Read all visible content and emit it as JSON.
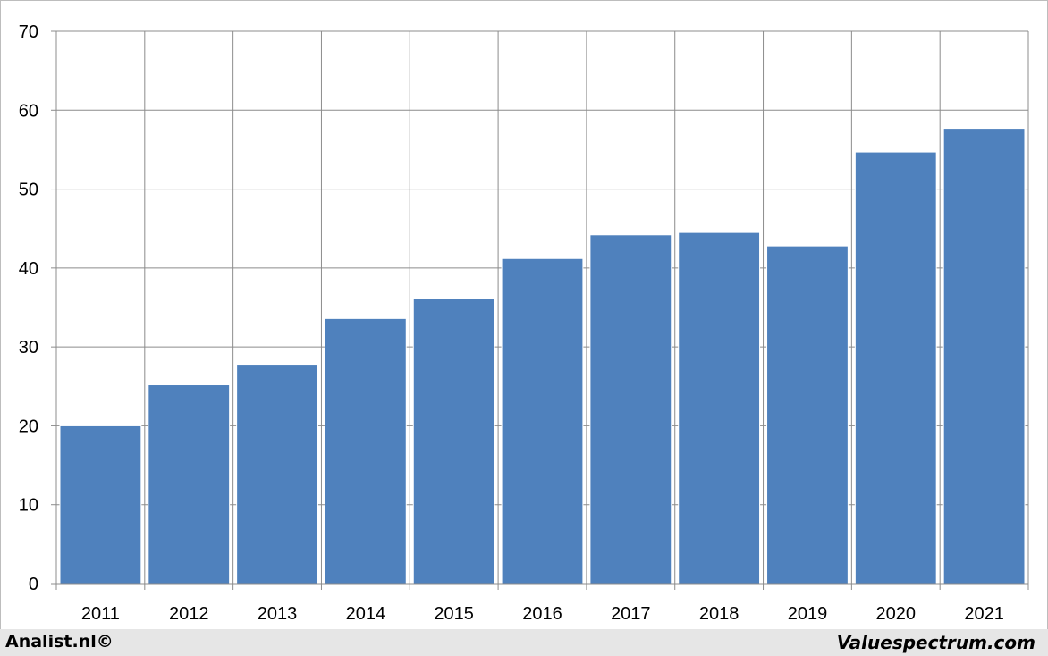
{
  "chart_data": {
    "type": "bar",
    "categories": [
      "2011",
      "2012",
      "2013",
      "2014",
      "2015",
      "2016",
      "2017",
      "2018",
      "2019",
      "2020",
      "2021"
    ],
    "values": [
      20.0,
      25.2,
      27.8,
      33.6,
      36.1,
      41.2,
      44.2,
      44.5,
      42.8,
      54.7,
      57.7
    ],
    "title": "",
    "xlabel": "",
    "ylabel": "",
    "ylim": [
      0,
      70
    ],
    "yticks": [
      0,
      10,
      20,
      30,
      40,
      50,
      60,
      70
    ],
    "grid": true,
    "bar_color": "#4f81bd"
  },
  "footer": {
    "left": "Analist.nl©",
    "right": "Valuespectrum.com"
  }
}
